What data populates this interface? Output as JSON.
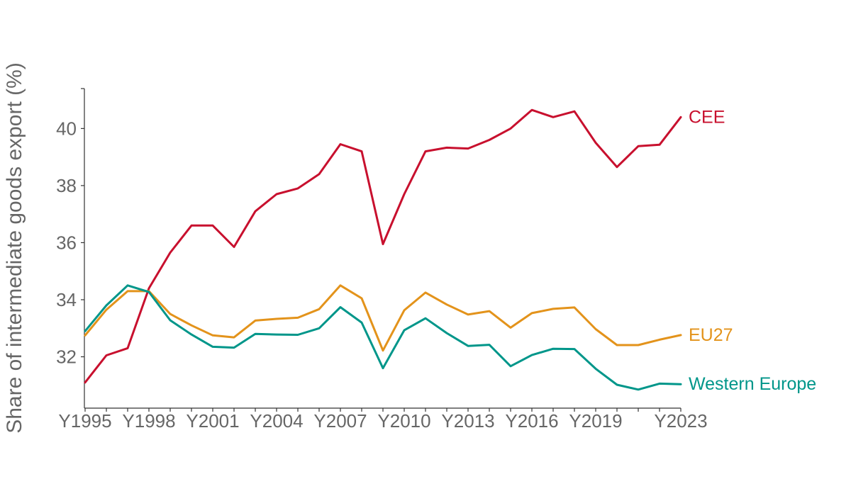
{
  "chart_data": {
    "type": "line",
    "title": "",
    "xlabel": "",
    "ylabel": "Share of intermediate goods export (%)",
    "x": [
      "Y1995",
      "Y1996",
      "Y1997",
      "Y1998",
      "Y1999",
      "Y2000",
      "Y2001",
      "Y2002",
      "Y2003",
      "Y2004",
      "Y2005",
      "Y2006",
      "Y2007",
      "Y2008",
      "Y2009",
      "Y2010",
      "Y2011",
      "Y2012",
      "Y2013",
      "Y2014",
      "Y2015",
      "Y2016",
      "Y2017",
      "Y2018",
      "Y2019",
      "Y2020",
      "Y2021",
      "Y2022",
      "Y2023"
    ],
    "x_tick_labels": [
      "Y1995",
      "Y1998",
      "Y2001",
      "Y2004",
      "Y2007",
      "Y2010",
      "Y2013",
      "Y2016",
      "Y2019",
      "Y2023"
    ],
    "ylim": [
      30.2,
      41.4
    ],
    "y_ticks": [
      32,
      34,
      36,
      38,
      40
    ],
    "grid": false,
    "legend": "direct labels at line ends",
    "series": [
      {
        "name": "CEE",
        "color": "#c8102e",
        "values": [
          31.1,
          32.05,
          32.3,
          34.4,
          35.65,
          36.6,
          36.6,
          35.85,
          37.1,
          37.7,
          37.9,
          38.4,
          39.45,
          39.2,
          35.95,
          37.7,
          39.2,
          39.33,
          39.3,
          39.6,
          40.0,
          40.65,
          40.4,
          40.6,
          39.5,
          38.65,
          39.38,
          39.43,
          40.4
        ]
      },
      {
        "name": "EU27",
        "color": "#e3931b",
        "values": [
          32.75,
          33.65,
          34.3,
          34.3,
          33.5,
          33.1,
          32.75,
          32.68,
          33.27,
          33.33,
          33.37,
          33.67,
          34.5,
          34.05,
          32.22,
          33.63,
          34.25,
          33.83,
          33.48,
          33.6,
          33.02,
          33.53,
          33.68,
          33.73,
          32.97,
          32.41,
          32.41,
          32.6,
          32.76
        ]
      },
      {
        "name": "Western Europe",
        "color": "#00968a",
        "values": [
          32.9,
          33.8,
          34.5,
          34.27,
          33.28,
          32.78,
          32.35,
          32.32,
          32.8,
          32.78,
          32.77,
          33.0,
          33.74,
          33.2,
          31.6,
          32.93,
          33.35,
          32.83,
          32.38,
          32.42,
          31.67,
          32.06,
          32.28,
          32.27,
          31.58,
          31.02,
          30.85,
          31.06,
          31.04
        ]
      }
    ]
  }
}
